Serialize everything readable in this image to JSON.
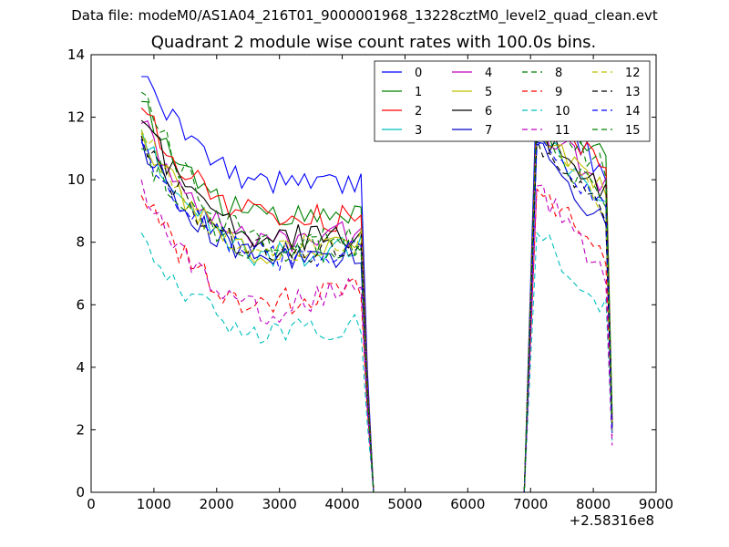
{
  "figure": {
    "suptitle": "Data file: modeM0/AS1A04_216T01_9000001968_13228cztM0_level2_quad_clean.evt",
    "x_offset_label": "+2.58316e8"
  },
  "chart_data": {
    "type": "line",
    "title": "Quadrant 2 module wise count rates with 100.0s bins.",
    "xlabel": "",
    "ylabel": "",
    "xlim": [
      0,
      9000
    ],
    "ylim": [
      0,
      14
    ],
    "x_offset": 258316000,
    "xticks": [
      0,
      1000,
      2000,
      3000,
      4000,
      5000,
      6000,
      7000,
      8000,
      9000
    ],
    "yticks": [
      0,
      2,
      4,
      6,
      8,
      10,
      12,
      14
    ],
    "xtick_labels": [
      "0",
      "1000",
      "2000",
      "3000",
      "4000",
      "5000",
      "6000",
      "7000",
      "8000",
      "9000"
    ],
    "ytick_labels": [
      "0",
      "2",
      "4",
      "6",
      "8",
      "10",
      "12",
      "14"
    ],
    "grid": false,
    "legend_position": "top-right",
    "legend_columns": 4,
    "gap": {
      "drop_start": 4300,
      "zero_start": 4500,
      "zero_end": 6900,
      "rise_end": 7100
    },
    "segment1_x": [
      800,
      900,
      1000,
      1100,
      1200,
      1300,
      1400,
      1500,
      1600,
      1700,
      1800,
      1900,
      2000,
      2100,
      2200,
      2300,
      2400,
      2500,
      2600,
      2700,
      2800,
      2900,
      3000,
      3100,
      3200,
      3300,
      3400,
      3500,
      3600,
      3700,
      3800,
      3900,
      4000,
      4100,
      4200,
      4300
    ],
    "segment2_x": [
      7100,
      7200,
      7300,
      7400,
      7500,
      7600,
      7700,
      7800,
      7900,
      8000,
      8100,
      8200
    ],
    "end_point": {
      "x": 8300
    },
    "series": [
      {
        "name": "0",
        "color": "#0000ff",
        "dash": "solid",
        "seg1_start": 13.3,
        "seg1_mid": 9.9,
        "seg1_end": 9.9,
        "seg2_start": 13.2,
        "seg2_end": 10.0,
        "end_value": 2.2
      },
      {
        "name": "1",
        "color": "#008000",
        "dash": "solid",
        "seg1_start": 12.5,
        "seg1_mid": 8.7,
        "seg1_end": 8.9,
        "seg2_start": 12.4,
        "seg2_end": 10.7,
        "end_value": 2.5
      },
      {
        "name": "2",
        "color": "#ff0000",
        "dash": "solid",
        "seg1_start": 12.3,
        "seg1_mid": 8.8,
        "seg1_end": 8.8,
        "seg2_start": 12.3,
        "seg2_end": 10.5,
        "end_value": 2.3
      },
      {
        "name": "3",
        "color": "#00bfbf",
        "dash": "solid",
        "seg1_start": 11.6,
        "seg1_mid": 7.6,
        "seg1_end": 7.8,
        "seg2_start": 11.4,
        "seg2_end": 9.3,
        "end_value": 2.0
      },
      {
        "name": "4",
        "color": "#bf00bf",
        "dash": "solid",
        "seg1_start": 11.8,
        "seg1_mid": 8.1,
        "seg1_end": 8.3,
        "seg2_start": 11.8,
        "seg2_end": 9.8,
        "end_value": 2.1
      },
      {
        "name": "5",
        "color": "#bfbf00",
        "dash": "solid",
        "seg1_start": 11.5,
        "seg1_mid": 7.6,
        "seg1_end": 7.9,
        "seg2_start": 11.4,
        "seg2_end": 9.6,
        "end_value": 2.0
      },
      {
        "name": "6",
        "color": "#000000",
        "dash": "solid",
        "seg1_start": 11.9,
        "seg1_mid": 8.1,
        "seg1_end": 8.2,
        "seg2_start": 11.6,
        "seg2_end": 9.5,
        "end_value": 2.2
      },
      {
        "name": "7",
        "color": "#0000cc",
        "dash": "solid",
        "seg1_start": 11.3,
        "seg1_mid": 7.5,
        "seg1_end": 7.6,
        "seg2_start": 11.2,
        "seg2_end": 8.5,
        "end_value": 1.9
      },
      {
        "name": "8",
        "color": "#008000",
        "dash": "dashed",
        "seg1_start": 11.0,
        "seg1_mid": 7.8,
        "seg1_end": 7.8,
        "seg2_start": 11.3,
        "seg2_end": 9.3,
        "end_value": 2.0
      },
      {
        "name": "9",
        "color": "#ff0000",
        "dash": "dashed",
        "seg1_start": 9.5,
        "seg1_mid": 6.0,
        "seg1_end": 6.6,
        "seg2_start": 9.7,
        "seg2_end": 7.7,
        "end_value": 1.8
      },
      {
        "name": "10",
        "color": "#00bfbf",
        "dash": "dashed",
        "seg1_start": 8.3,
        "seg1_mid": 5.0,
        "seg1_end": 5.5,
        "seg2_start": 8.3,
        "seg2_end": 5.9,
        "end_value": 1.6
      },
      {
        "name": "11",
        "color": "#bf00bf",
        "dash": "dashed",
        "seg1_start": 10.0,
        "seg1_mid": 5.8,
        "seg1_end": 6.6,
        "seg2_start": 9.8,
        "seg2_end": 6.8,
        "end_value": 1.5
      },
      {
        "name": "12",
        "color": "#bfbf00",
        "dash": "dashed",
        "seg1_start": 11.6,
        "seg1_mid": 7.8,
        "seg1_end": 8.0,
        "seg2_start": 11.8,
        "seg2_end": 9.1,
        "end_value": 2.0
      },
      {
        "name": "13",
        "color": "#000000",
        "dash": "dashed",
        "seg1_start": 11.4,
        "seg1_mid": 7.7,
        "seg1_end": 7.9,
        "seg2_start": 11.3,
        "seg2_end": 9.0,
        "end_value": 2.0
      },
      {
        "name": "14",
        "color": "#0000ff",
        "dash": "dashed",
        "seg1_start": 11.2,
        "seg1_mid": 7.5,
        "seg1_end": 7.7,
        "seg2_start": 11.1,
        "seg2_end": 8.9,
        "end_value": 1.9
      },
      {
        "name": "15",
        "color": "#008000",
        "dash": "dashed",
        "seg1_start": 12.8,
        "seg1_mid": 8.0,
        "seg1_end": 8.1,
        "seg2_start": 12.2,
        "seg2_end": 10.3,
        "end_value": 2.4
      }
    ]
  }
}
